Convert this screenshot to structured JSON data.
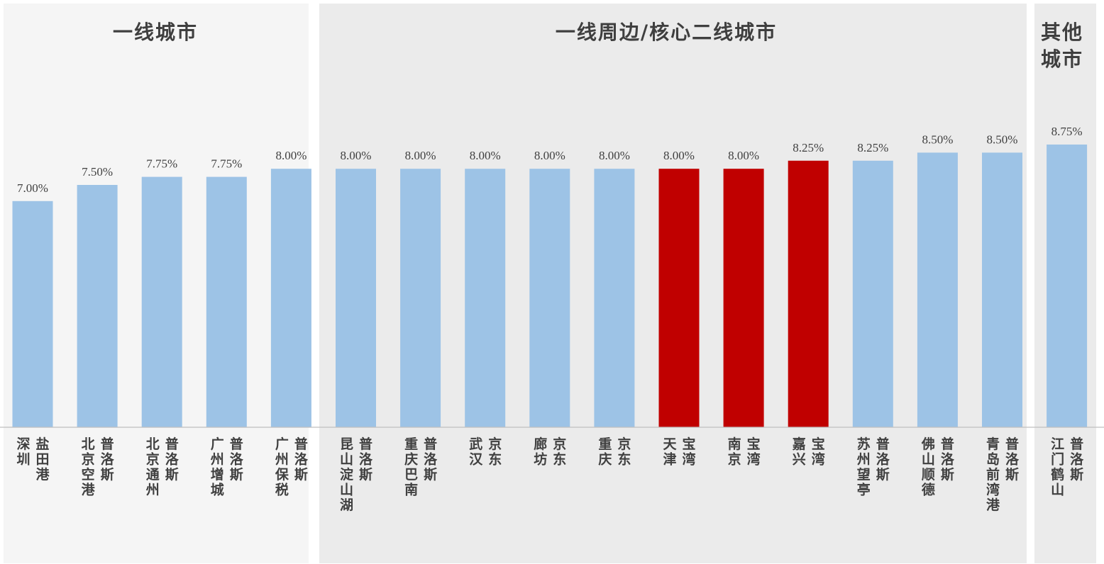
{
  "chart_data": {
    "type": "bar",
    "title": "",
    "xlabel": "",
    "ylabel": "",
    "ylim": [
      0,
      9.5
    ],
    "groups": [
      {
        "name": "一线城市",
        "title_lines": [
          "一线城市"
        ],
        "categories": [
          "深圳盐田港",
          "北京空港普洛斯",
          "北京通州普洛斯",
          "广州增城普洛斯",
          "广州保税普洛斯"
        ]
      },
      {
        "name": "一线周边/核心二线城市",
        "title_lines": [
          "一线周边/核心二线城市"
        ],
        "categories": [
          "昆山淀山湖普洛斯",
          "重庆巴南普洛斯",
          "武汉京东",
          "廊坊京东",
          "重庆京东",
          "天津宝湾",
          "南京宝湾",
          "嘉兴宝湾",
          "苏州望亭普洛斯",
          "佛山顺德普洛斯",
          "青岛前湾港普洛斯"
        ]
      },
      {
        "name": "其他城市",
        "title_lines": [
          "其他",
          "城市"
        ],
        "categories": [
          "江门鹤山普洛斯"
        ]
      }
    ],
    "categories": [
      {
        "col1": "深圳",
        "col2": "盐田港"
      },
      {
        "col1": "北京空港",
        "col2": "普洛斯"
      },
      {
        "col1": "北京通州",
        "col2": "普洛斯"
      },
      {
        "col1": "广州增城",
        "col2": "普洛斯"
      },
      {
        "col1": "广州保税",
        "col2": "普洛斯"
      },
      {
        "col1": "昆山淀山湖",
        "col2": "普洛斯"
      },
      {
        "col1": "重庆巴南",
        "col2": "普洛斯"
      },
      {
        "col1": "武汉",
        "col2": "京东"
      },
      {
        "col1": "廊坊",
        "col2": "京东"
      },
      {
        "col1": "重庆",
        "col2": "京东"
      },
      {
        "col1": "天津",
        "col2": "宝湾"
      },
      {
        "col1": "南京",
        "col2": "宝湾"
      },
      {
        "col1": "嘉兴",
        "col2": "宝湾"
      },
      {
        "col1": "苏州望亭",
        "col2": "普洛斯"
      },
      {
        "col1": "佛山顺德",
        "col2": "普洛斯"
      },
      {
        "col1": "青岛前湾港",
        "col2": "普洛斯"
      },
      {
        "col1": "江门鹤山",
        "col2": "普洛斯"
      }
    ],
    "values": [
      7.0,
      7.5,
      7.75,
      7.75,
      8.0,
      8.0,
      8.0,
      8.0,
      8.0,
      8.0,
      8.0,
      8.0,
      8.25,
      8.25,
      8.5,
      8.5,
      8.75
    ],
    "value_labels": [
      "7.00%",
      "7.50%",
      "7.75%",
      "7.75%",
      "8.00%",
      "8.00%",
      "8.00%",
      "8.00%",
      "8.00%",
      "8.00%",
      "8.00%",
      "8.00%",
      "8.25%",
      "8.25%",
      "8.50%",
      "8.50%",
      "8.75%"
    ],
    "highlighted": [
      false,
      false,
      false,
      false,
      false,
      false,
      false,
      false,
      false,
      false,
      true,
      true,
      true,
      false,
      false,
      false,
      false
    ],
    "colors": {
      "bar": "#9dc3e6",
      "bar_highlight": "#c00000",
      "group_bg_1": "#f5f5f5",
      "group_bg_2": "#ebebeb",
      "group_bg_3": "#ebebeb",
      "axis": "#bfbfbf",
      "text": "#404040"
    }
  }
}
